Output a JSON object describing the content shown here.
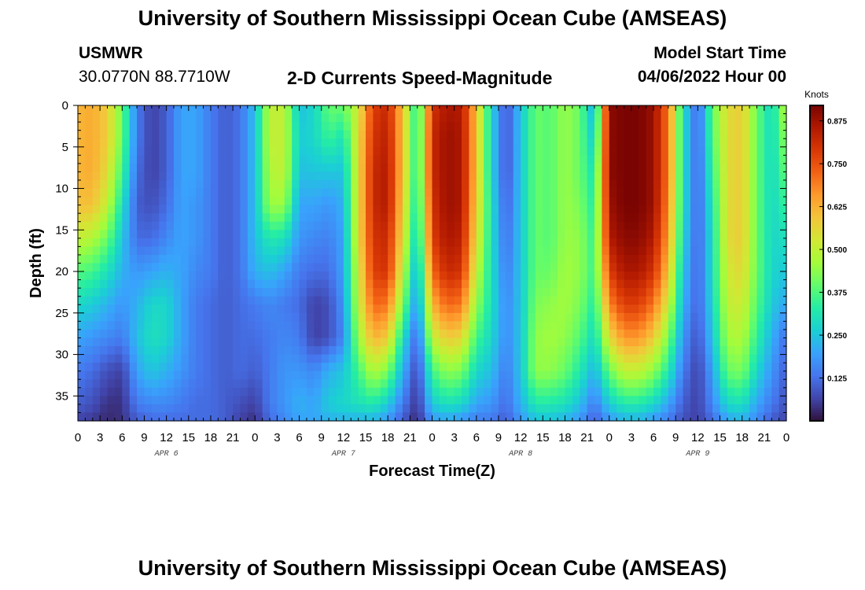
{
  "page": {
    "title_top": "University of Southern Mississippi Ocean Cube (AMSEAS)",
    "title_bottom": "University of Southern Mississippi Ocean Cube (AMSEAS)",
    "station_name": "USMWR",
    "station_coords": "30.0770N  88.7710W",
    "plot_title": "2-D Currents Speed-Magnitude",
    "model_start_label": "Model Start Time",
    "model_start_value": "04/06/2022 Hour 00"
  },
  "chart_data": {
    "type": "heatmap",
    "title": "2-D Currents Speed-Magnitude",
    "xlabel": "Forecast Time(Z)",
    "ylabel": "Depth (ft)",
    "colorbar_label": "Knots",
    "xlim": [
      0,
      96
    ],
    "ylim": [
      38,
      0
    ],
    "x_tick_values": [
      0,
      3,
      6,
      9,
      12,
      15,
      18,
      21,
      24,
      27,
      30,
      33,
      36,
      39,
      42,
      45,
      48,
      51,
      54,
      57,
      60,
      63,
      66,
      69,
      72,
      75,
      78,
      81,
      84,
      87,
      90,
      93,
      96
    ],
    "x_tick_labels": [
      "0",
      "3",
      "6",
      "9",
      "12",
      "15",
      "18",
      "21",
      "0",
      "3",
      "6",
      "9",
      "12",
      "15",
      "18",
      "21",
      "0",
      "3",
      "6",
      "9",
      "12",
      "15",
      "18",
      "21",
      "0",
      "3",
      "6",
      "9",
      "12",
      "15",
      "18",
      "21",
      "0"
    ],
    "y_tick_values": [
      0,
      5,
      10,
      15,
      20,
      25,
      30,
      35
    ],
    "y_tick_labels": [
      "0",
      "5",
      "10",
      "15",
      "20",
      "25",
      "30",
      "35"
    ],
    "date_labels": [
      {
        "label": "APR 6",
        "hour": 12
      },
      {
        "label": "APR 7",
        "hour": 36
      },
      {
        "label": "APR 8",
        "hour": 60
      },
      {
        "label": "APR 9",
        "hour": 84
      }
    ],
    "colorbar_range": [
      0.0,
      0.92
    ],
    "colorbar_ticks": [
      0.125,
      0.25,
      0.375,
      0.5,
      0.625,
      0.75,
      0.875
    ],
    "colorbar_tick_labels": [
      "0.125",
      "0.250",
      "0.375",
      "0.500",
      "0.625",
      "0.750",
      "0.875"
    ],
    "colormap": [
      "#30123b",
      "#4145ab",
      "#4675ed",
      "#39a2fc",
      "#1bcfd4",
      "#24eca6",
      "#61fc6c",
      "#a4fc3b",
      "#d1e834",
      "#f3c63a",
      "#fe9b2d",
      "#f36315",
      "#d93806",
      "#b11901",
      "#7a0402"
    ],
    "depth_samples_ft": [
      0,
      4,
      8,
      12,
      16,
      20,
      24,
      28,
      32,
      36,
      38
    ],
    "time_samples_h": [
      0,
      2,
      4,
      6,
      8,
      10,
      12,
      14,
      16,
      18,
      20,
      22,
      24,
      26,
      28,
      30,
      32,
      34,
      36,
      38,
      40,
      42,
      44,
      46,
      48,
      50,
      52,
      54,
      56,
      58,
      60,
      62,
      64,
      66,
      68,
      70,
      72,
      74,
      76,
      78,
      80,
      82,
      84,
      86,
      88,
      90,
      92,
      94,
      96
    ],
    "speed_knots": [
      [
        0.62,
        0.63,
        0.58,
        0.4,
        0.14,
        0.06,
        0.1,
        0.2,
        0.2,
        0.14,
        0.1,
        0.13,
        0.24,
        0.5,
        0.5,
        0.24,
        0.28,
        0.4,
        0.4,
        0.52,
        0.78,
        0.82,
        0.6,
        0.3,
        0.8,
        0.86,
        0.85,
        0.6,
        0.28,
        0.08,
        0.25,
        0.4,
        0.38,
        0.45,
        0.4,
        0.2,
        0.9,
        0.92,
        0.92,
        0.88,
        0.7,
        0.3,
        0.1,
        0.4,
        0.55,
        0.58,
        0.4,
        0.28,
        0.5
      ],
      [
        0.62,
        0.63,
        0.58,
        0.4,
        0.14,
        0.06,
        0.1,
        0.2,
        0.2,
        0.14,
        0.1,
        0.13,
        0.24,
        0.5,
        0.5,
        0.26,
        0.28,
        0.35,
        0.3,
        0.55,
        0.8,
        0.84,
        0.6,
        0.3,
        0.82,
        0.88,
        0.86,
        0.6,
        0.28,
        0.08,
        0.25,
        0.4,
        0.38,
        0.45,
        0.4,
        0.25,
        0.9,
        0.92,
        0.92,
        0.88,
        0.7,
        0.3,
        0.1,
        0.38,
        0.55,
        0.58,
        0.4,
        0.28,
        0.45
      ],
      [
        0.62,
        0.63,
        0.55,
        0.36,
        0.12,
        0.06,
        0.1,
        0.2,
        0.2,
        0.14,
        0.1,
        0.13,
        0.24,
        0.48,
        0.5,
        0.24,
        0.25,
        0.25,
        0.25,
        0.55,
        0.82,
        0.85,
        0.6,
        0.3,
        0.82,
        0.88,
        0.86,
        0.6,
        0.28,
        0.08,
        0.25,
        0.4,
        0.38,
        0.45,
        0.4,
        0.3,
        0.9,
        0.92,
        0.92,
        0.88,
        0.7,
        0.3,
        0.1,
        0.35,
        0.55,
        0.58,
        0.4,
        0.28,
        0.4
      ],
      [
        0.6,
        0.6,
        0.5,
        0.3,
        0.1,
        0.08,
        0.12,
        0.2,
        0.18,
        0.14,
        0.1,
        0.13,
        0.24,
        0.45,
        0.45,
        0.2,
        0.2,
        0.18,
        0.22,
        0.55,
        0.82,
        0.85,
        0.58,
        0.28,
        0.8,
        0.88,
        0.86,
        0.58,
        0.3,
        0.1,
        0.25,
        0.4,
        0.38,
        0.45,
        0.42,
        0.32,
        0.88,
        0.92,
        0.92,
        0.88,
        0.68,
        0.3,
        0.1,
        0.32,
        0.55,
        0.58,
        0.4,
        0.28,
        0.35
      ],
      [
        0.5,
        0.48,
        0.4,
        0.25,
        0.12,
        0.12,
        0.16,
        0.2,
        0.18,
        0.14,
        0.1,
        0.13,
        0.24,
        0.32,
        0.3,
        0.18,
        0.16,
        0.15,
        0.2,
        0.55,
        0.8,
        0.82,
        0.55,
        0.25,
        0.78,
        0.86,
        0.84,
        0.55,
        0.3,
        0.12,
        0.25,
        0.4,
        0.38,
        0.45,
        0.44,
        0.34,
        0.85,
        0.9,
        0.9,
        0.85,
        0.65,
        0.28,
        0.1,
        0.3,
        0.55,
        0.58,
        0.4,
        0.28,
        0.3
      ],
      [
        0.38,
        0.36,
        0.3,
        0.22,
        0.18,
        0.2,
        0.22,
        0.2,
        0.16,
        0.14,
        0.1,
        0.13,
        0.22,
        0.24,
        0.2,
        0.14,
        0.12,
        0.12,
        0.2,
        0.52,
        0.78,
        0.8,
        0.5,
        0.2,
        0.72,
        0.82,
        0.8,
        0.5,
        0.3,
        0.14,
        0.25,
        0.4,
        0.4,
        0.46,
        0.44,
        0.35,
        0.78,
        0.86,
        0.86,
        0.8,
        0.6,
        0.25,
        0.1,
        0.3,
        0.52,
        0.56,
        0.4,
        0.28,
        0.25
      ],
      [
        0.28,
        0.26,
        0.22,
        0.18,
        0.22,
        0.28,
        0.28,
        0.2,
        0.14,
        0.12,
        0.1,
        0.12,
        0.14,
        0.16,
        0.14,
        0.12,
        0.06,
        0.08,
        0.18,
        0.5,
        0.72,
        0.7,
        0.42,
        0.16,
        0.62,
        0.72,
        0.7,
        0.44,
        0.3,
        0.16,
        0.25,
        0.42,
        0.44,
        0.46,
        0.42,
        0.32,
        0.68,
        0.78,
        0.78,
        0.7,
        0.52,
        0.22,
        0.1,
        0.28,
        0.5,
        0.52,
        0.38,
        0.26,
        0.2
      ],
      [
        0.2,
        0.18,
        0.16,
        0.14,
        0.24,
        0.3,
        0.28,
        0.2,
        0.14,
        0.12,
        0.1,
        0.12,
        0.12,
        0.14,
        0.16,
        0.14,
        0.06,
        0.08,
        0.16,
        0.45,
        0.62,
        0.58,
        0.3,
        0.1,
        0.5,
        0.58,
        0.56,
        0.36,
        0.28,
        0.16,
        0.25,
        0.44,
        0.46,
        0.44,
        0.38,
        0.28,
        0.55,
        0.66,
        0.66,
        0.58,
        0.42,
        0.18,
        0.08,
        0.25,
        0.46,
        0.48,
        0.34,
        0.22,
        0.12
      ],
      [
        0.14,
        0.12,
        0.08,
        0.06,
        0.2,
        0.25,
        0.22,
        0.18,
        0.14,
        0.12,
        0.1,
        0.12,
        0.1,
        0.14,
        0.18,
        0.18,
        0.16,
        0.22,
        0.25,
        0.36,
        0.48,
        0.42,
        0.22,
        0.06,
        0.36,
        0.44,
        0.42,
        0.28,
        0.24,
        0.14,
        0.25,
        0.44,
        0.44,
        0.4,
        0.32,
        0.22,
        0.4,
        0.5,
        0.5,
        0.44,
        0.32,
        0.14,
        0.06,
        0.2,
        0.4,
        0.42,
        0.28,
        0.18,
        0.1
      ],
      [
        0.1,
        0.08,
        0.04,
        0.04,
        0.14,
        0.16,
        0.16,
        0.14,
        0.12,
        0.12,
        0.1,
        0.08,
        0.06,
        0.14,
        0.18,
        0.22,
        0.2,
        0.26,
        0.28,
        0.3,
        0.32,
        0.26,
        0.14,
        0.04,
        0.26,
        0.3,
        0.28,
        0.2,
        0.18,
        0.12,
        0.22,
        0.32,
        0.32,
        0.3,
        0.24,
        0.14,
        0.26,
        0.32,
        0.32,
        0.28,
        0.2,
        0.1,
        0.06,
        0.16,
        0.28,
        0.3,
        0.2,
        0.14,
        0.08
      ],
      [
        0.06,
        0.05,
        0.03,
        0.04,
        0.1,
        0.12,
        0.12,
        0.12,
        0.12,
        0.12,
        0.1,
        0.06,
        0.04,
        0.12,
        0.16,
        0.2,
        0.2,
        0.22,
        0.22,
        0.22,
        0.22,
        0.18,
        0.1,
        0.03,
        0.18,
        0.2,
        0.18,
        0.14,
        0.14,
        0.1,
        0.18,
        0.24,
        0.24,
        0.22,
        0.18,
        0.1,
        0.18,
        0.22,
        0.22,
        0.18,
        0.14,
        0.08,
        0.06,
        0.12,
        0.2,
        0.22,
        0.16,
        0.1,
        0.06
      ]
    ]
  }
}
